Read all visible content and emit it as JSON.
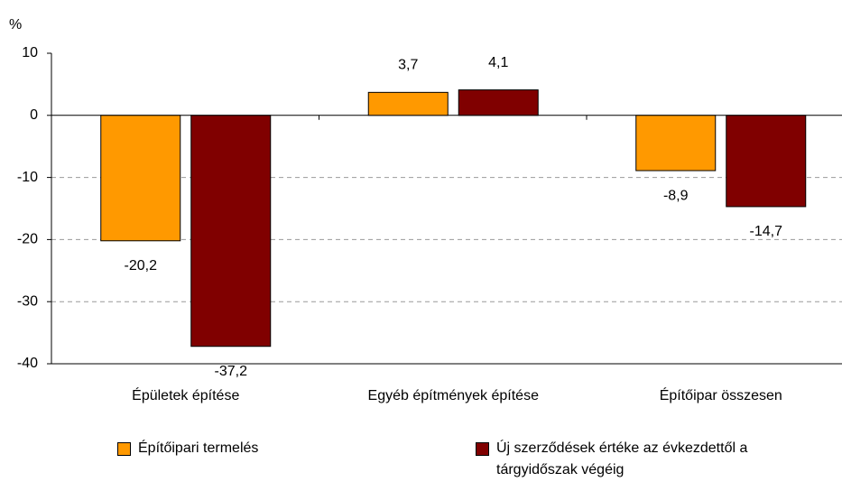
{
  "chart_data": {
    "type": "bar",
    "y_label": "%",
    "categories": [
      "Épületek építése",
      "Egyéb építmények építése",
      "Építőipar összesen"
    ],
    "series": [
      {
        "name": "Építőipari termelés",
        "color": "#ff9900",
        "values": [
          -20.2,
          3.7,
          -8.9
        ],
        "value_labels": [
          "-20,2",
          "3,7",
          "-8,9"
        ]
      },
      {
        "name": "Új szerződések értéke az évkezdettől a tárgyidőszak végéig",
        "color": "#800000",
        "values": [
          -37.2,
          4.1,
          -14.7
        ],
        "value_labels": [
          "-37,2",
          "4,1",
          "-14,7"
        ]
      }
    ],
    "ylim": [
      -40,
      10
    ],
    "yticks": [
      -40,
      -30,
      -20,
      -10,
      0,
      10
    ],
    "grid": true
  }
}
